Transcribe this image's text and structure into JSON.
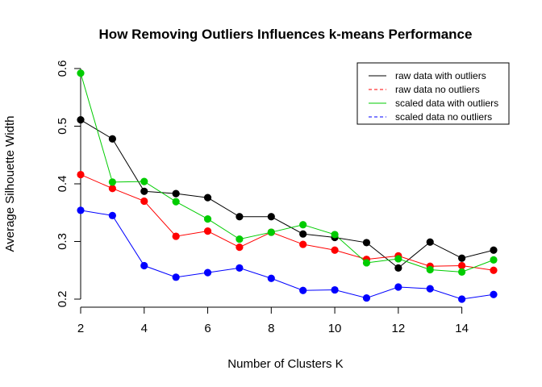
{
  "chart_data": {
    "type": "line",
    "title": "How Removing Outliers Influences k-means Performance",
    "xlabel": "Number of Clusters K",
    "ylabel": "Average Silhouette Width",
    "x": [
      2,
      3,
      4,
      5,
      6,
      7,
      8,
      9,
      10,
      11,
      12,
      13,
      14,
      15
    ],
    "xlim": [
      2,
      15
    ],
    "ylim": [
      0.2,
      0.6
    ],
    "x_ticks": [
      "2",
      "4",
      "6",
      "8",
      "10",
      "12",
      "14"
    ],
    "y_ticks": [
      "0.2",
      "0.3",
      "0.4",
      "0.5",
      "0.6"
    ],
    "legend_position": "top-right",
    "grid": false,
    "series": [
      {
        "name": "raw data with outliers",
        "color": "#000000",
        "dashed": false,
        "values": [
          0.511,
          0.478,
          0.387,
          0.383,
          0.376,
          0.343,
          0.343,
          0.313,
          0.307,
          0.298,
          0.254,
          0.299,
          0.271,
          0.285
        ]
      },
      {
        "name": "raw data no outliers",
        "color": "#ff0000",
        "dashed": true,
        "values": [
          0.416,
          0.392,
          0.37,
          0.309,
          0.318,
          0.29,
          0.316,
          0.295,
          0.285,
          0.269,
          0.275,
          0.257,
          0.258,
          0.25
        ]
      },
      {
        "name": "scaled data with outliers",
        "color": "#00cc00",
        "dashed": false,
        "values": [
          0.592,
          0.403,
          0.404,
          0.369,
          0.339,
          0.304,
          0.316,
          0.329,
          0.312,
          0.263,
          0.27,
          0.251,
          0.247,
          0.268
        ]
      },
      {
        "name": "scaled data no outliers",
        "color": "#0000ff",
        "dashed": true,
        "values": [
          0.354,
          0.345,
          0.258,
          0.238,
          0.246,
          0.254,
          0.236,
          0.215,
          0.216,
          0.202,
          0.221,
          0.218,
          0.2,
          0.208
        ]
      }
    ]
  }
}
